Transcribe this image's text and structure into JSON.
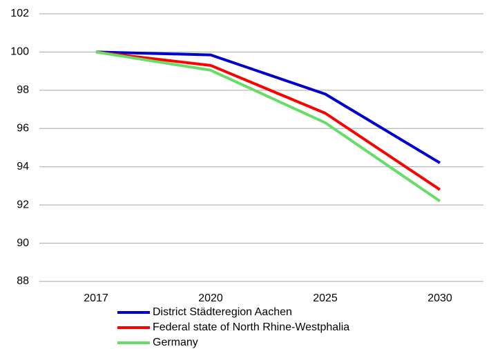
{
  "chart_data": {
    "type": "line",
    "categories": [
      "2017",
      "2020",
      "2025",
      "2030"
    ],
    "series": [
      {
        "name": "District Städteregion Aachen",
        "color": "#0000cc",
        "values": [
          100,
          99.85,
          97.8,
          94.2
        ]
      },
      {
        "name": "Federal state of North Rhine-Westphalia",
        "color": "#ff0000",
        "values": [
          100,
          99.3,
          96.8,
          92.8
        ]
      },
      {
        "name": "Germany",
        "color": "#66dd66",
        "values": [
          100,
          99.05,
          96.3,
          92.2
        ]
      }
    ],
    "ylim": [
      88,
      102
    ],
    "yticks": [
      88,
      90,
      92,
      94,
      96,
      98,
      100,
      102
    ],
    "grid": true,
    "legend": "bottom"
  }
}
